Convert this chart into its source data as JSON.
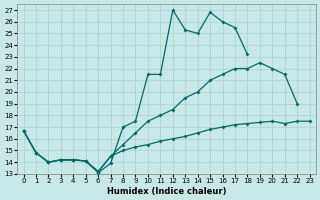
{
  "xlabel": "Humidex (Indice chaleur)",
  "bg_color": "#c8e8e8",
  "grid_color": "#a8d0d0",
  "line_color": "#006868",
  "xlim": [
    -0.5,
    23.5
  ],
  "ylim": [
    13,
    27.5
  ],
  "xticks": [
    0,
    1,
    2,
    3,
    4,
    5,
    6,
    7,
    8,
    9,
    10,
    11,
    12,
    13,
    14,
    15,
    16,
    17,
    18,
    19,
    20,
    21,
    22,
    23
  ],
  "yticks": [
    13,
    14,
    15,
    16,
    17,
    18,
    19,
    20,
    21,
    22,
    23,
    24,
    25,
    26,
    27
  ],
  "line1_x": [
    0,
    1,
    2,
    3,
    4,
    5,
    6,
    7,
    8,
    9,
    10,
    11,
    12,
    13,
    14,
    15,
    16,
    17,
    18
  ],
  "line1_y": [
    16.7,
    14.8,
    14.0,
    14.2,
    14.2,
    14.1,
    13.1,
    13.9,
    17.0,
    17.5,
    21.5,
    21.5,
    27.0,
    25.3,
    25.0,
    26.8,
    26.0,
    25.5,
    23.2
  ],
  "line2_x": [
    0,
    1,
    2,
    3,
    4,
    5,
    6,
    7,
    8,
    9,
    10,
    11,
    12,
    13,
    14,
    15,
    16,
    17,
    18,
    19,
    20,
    21,
    22
  ],
  "line2_y": [
    16.7,
    14.8,
    14.0,
    14.2,
    14.2,
    14.1,
    13.2,
    14.5,
    15.5,
    16.5,
    17.5,
    18.0,
    18.5,
    19.5,
    20.0,
    21.0,
    21.5,
    22.0,
    22.0,
    22.5,
    22.0,
    21.5,
    19.0
  ],
  "line3_x": [
    0,
    1,
    2,
    3,
    4,
    5,
    6,
    7,
    8,
    9,
    10,
    11,
    12,
    13,
    14,
    15,
    16,
    17,
    18,
    19,
    20,
    21,
    22,
    23
  ],
  "line3_y": [
    16.7,
    14.8,
    14.0,
    14.2,
    14.2,
    14.1,
    13.2,
    14.5,
    15.0,
    15.3,
    15.5,
    15.8,
    16.0,
    16.2,
    16.5,
    16.8,
    17.0,
    17.2,
    17.3,
    17.4,
    17.5,
    17.3,
    17.5,
    17.5
  ]
}
